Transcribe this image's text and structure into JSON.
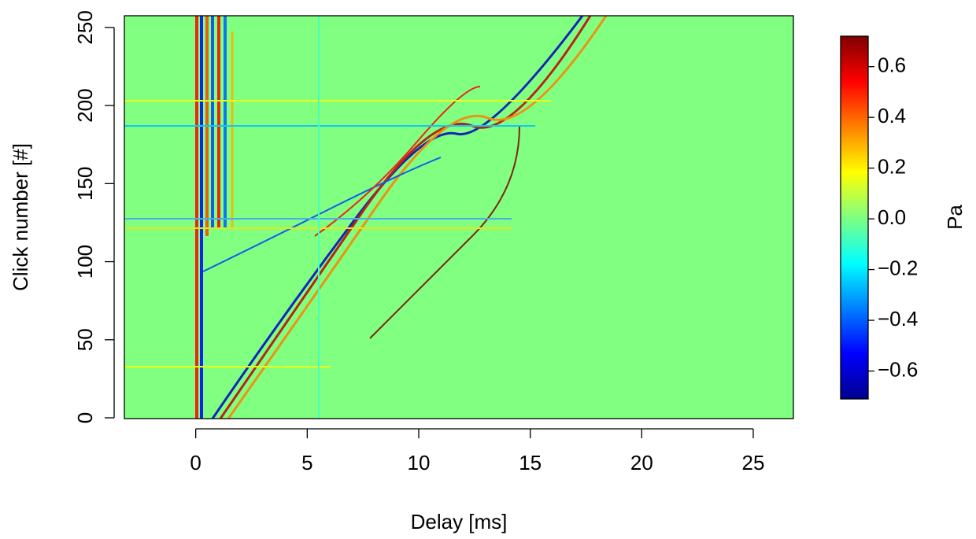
{
  "chart_data": {
    "type": "heatmap",
    "x_label": "Delay [ms]",
    "y_label": "Click number [#]",
    "colorbar_label": "Pa",
    "xlim": [
      -3.2,
      26.8
    ],
    "xticks": [
      0,
      5,
      10,
      15,
      20,
      25
    ],
    "ylim": [
      -0.5,
      257.5
    ],
    "yticks": [
      0,
      50,
      100,
      150,
      200,
      250
    ],
    "clim": [
      -0.71,
      0.72
    ],
    "cticks": [
      {
        "value": -0.6,
        "label": "−0.6"
      },
      {
        "value": -0.4,
        "label": "−0.4"
      },
      {
        "value": -0.2,
        "label": "−0.2"
      },
      {
        "value": 0,
        "label": "0.0"
      },
      0.2,
      0.4,
      0.6
    ],
    "colormap": [
      "#00008f",
      "#0000ff",
      "#0080ff",
      "#00ffff",
      "#80ff80",
      "#ffff00",
      "#ff8000",
      "#ff0000",
      "#800000"
    ]
  }
}
